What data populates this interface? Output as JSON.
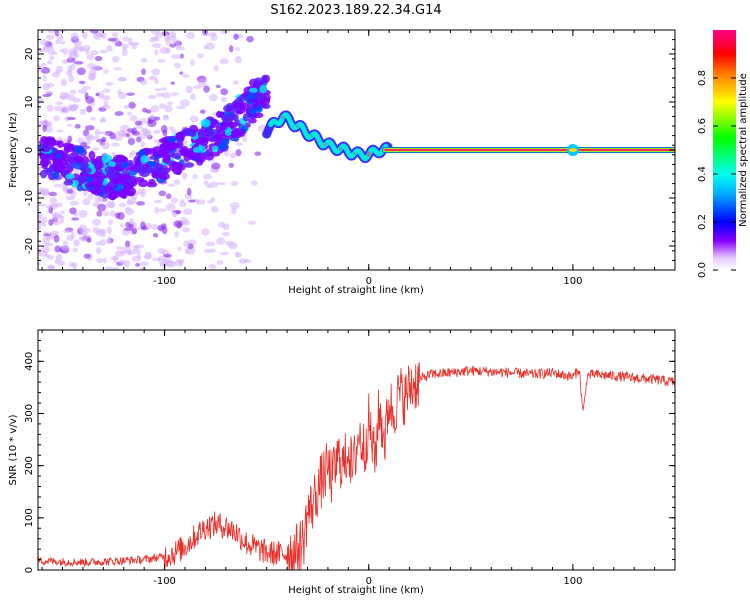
{
  "title": "S162.2023.189.22.34.G14",
  "colors": {
    "snr_line": "#e8302a",
    "spectrogram_ridge": "#e8305a",
    "spectrogram_scatter": "#8a3cf0",
    "colormap": [
      "#ffffff",
      "#d9b3ff",
      "#7a00ff",
      "#0000ff",
      "#00ffff",
      "#00ff00",
      "#ffff00",
      "#ff8800",
      "#ff0000",
      "#ff0066"
    ]
  },
  "chart_data": [
    {
      "type": "heatmap",
      "name": "spectrogram",
      "title": "S162.2023.189.22.34.G14",
      "xlabel": "Height of straight line (km)",
      "ylabel": "Frequency (Hz)",
      "xlim": [
        -162,
        150
      ],
      "ylim": [
        -25,
        25
      ],
      "x_ticks": [
        -100,
        0,
        100
      ],
      "y_ticks": [
        -20,
        -10,
        0,
        10,
        20
      ],
      "grid": false,
      "ridge": {
        "description_points_x": [
          -160,
          -140,
          -120,
          -100,
          -80,
          -60,
          -50,
          -42,
          -35,
          -28,
          -20,
          -12,
          -5,
          0,
          5,
          10,
          50,
          100,
          150
        ],
        "description_points_y": [
          0,
          -2,
          -4,
          -5,
          1,
          5,
          4,
          7,
          5,
          3,
          1,
          0,
          -1,
          -1,
          0,
          0,
          0,
          0,
          0
        ]
      },
      "diffuse_ridge": {
        "x": [
          -55,
          -65,
          -75,
          -85,
          -95,
          -105,
          -115,
          -125,
          -140,
          -160
        ],
        "y": [
          11,
          6,
          3,
          1,
          -1,
          -3,
          -5,
          -6,
          -4,
          -1
        ]
      },
      "colorbar": {
        "label": "Normalized spectral amplitude",
        "range": [
          0,
          1
        ],
        "ticks": [
          0.0,
          0.2,
          0.4,
          0.6,
          0.8
        ]
      }
    },
    {
      "type": "line",
      "name": "snr",
      "xlabel": "Height of straight line (km)",
      "ylabel": "SNR (10 * v/v)",
      "xlim": [
        -162,
        150
      ],
      "ylim": [
        0,
        460
      ],
      "x_ticks": [
        -100,
        0,
        100
      ],
      "y_ticks": [
        0,
        100,
        200,
        300,
        400
      ],
      "grid": false,
      "series": [
        {
          "x": [
            -162,
            -150,
            -140,
            -130,
            -120,
            -110,
            -100,
            -95,
            -90,
            -85,
            -80,
            -75,
            -70,
            -65,
            -60,
            -55,
            -50,
            -45,
            -40,
            -35,
            -32,
            -30,
            -28,
            -25,
            -22,
            -20,
            -18,
            -15,
            -12,
            -10,
            -8,
            -5,
            -2,
            0,
            3,
            5,
            8,
            10,
            12,
            15,
            18,
            20,
            25,
            30,
            40,
            50,
            60,
            70,
            80,
            90,
            100,
            103,
            105,
            107,
            110,
            120,
            130,
            140,
            150
          ],
          "y": [
            18,
            16,
            15,
            16,
            18,
            20,
            26,
            33,
            45,
            65,
            82,
            88,
            83,
            72,
            52,
            42,
            33,
            31,
            32,
            36,
            55,
            110,
            120,
            155,
            180,
            195,
            175,
            215,
            200,
            240,
            185,
            260,
            230,
            285,
            210,
            305,
            250,
            325,
            300,
            340,
            330,
            350,
            365,
            375,
            378,
            382,
            380,
            378,
            375,
            378,
            370,
            385,
            300,
            372,
            375,
            372,
            368,
            365,
            360
          ]
        }
      ]
    }
  ]
}
